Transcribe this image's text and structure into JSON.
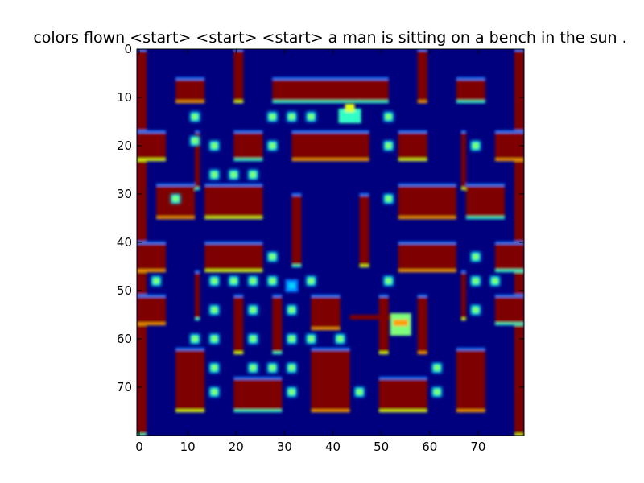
{
  "title": "colors flown <start> <start> <start> a man is sitting on a bench in the sun .",
  "chart_data": {
    "type": "heatmap",
    "title": "colors flown <start> <start> <start> a man is sitting on a bench in the sun .",
    "colormap": "jet",
    "xlim": [
      0,
      80
    ],
    "ylim": [
      80,
      0
    ],
    "x_ticks": [
      0,
      10,
      20,
      30,
      40,
      50,
      60,
      70
    ],
    "y_ticks": [
      0,
      10,
      20,
      30,
      40,
      50,
      60,
      70
    ],
    "colors": {
      "background": "#00007f",
      "wall": "#7f0000",
      "wall_edge_red": "#ff1a00",
      "edge_orange": "#ff9e00",
      "edge_yellow": "#e0ff18",
      "edge_cyan": "#30ffc6",
      "edge_blue": "#007cff",
      "pellet": "#7fff7a",
      "pellet_halo": "#00d4ff"
    },
    "walls": [
      [
        0,
        0,
        2,
        80
      ],
      [
        78,
        0,
        2,
        80
      ],
      [
        8,
        6,
        6,
        5
      ],
      [
        66,
        6,
        6,
        5
      ],
      [
        20,
        0,
        2,
        11
      ],
      [
        58,
        0,
        2,
        11
      ],
      [
        28,
        6,
        24,
        5
      ],
      [
        0,
        17,
        6,
        6
      ],
      [
        74,
        17,
        6,
        6
      ],
      [
        20,
        17,
        6,
        6
      ],
      [
        54,
        17,
        6,
        6
      ],
      [
        32,
        17,
        16,
        6
      ],
      [
        12,
        17,
        1,
        12
      ],
      [
        67,
        17,
        1,
        12
      ],
      [
        4,
        28,
        8,
        7
      ],
      [
        68,
        28,
        8,
        7
      ],
      [
        14,
        28,
        12,
        7
      ],
      [
        54,
        28,
        12,
        7
      ],
      [
        32,
        30,
        2,
        15
      ],
      [
        46,
        30,
        2,
        15
      ],
      [
        0,
        40,
        6,
        6
      ],
      [
        74,
        40,
        6,
        6
      ],
      [
        14,
        40,
        12,
        6
      ],
      [
        54,
        40,
        12,
        6
      ],
      [
        12,
        46,
        1,
        10
      ],
      [
        67,
        46,
        1,
        10
      ],
      [
        0,
        51,
        6,
        6
      ],
      [
        74,
        51,
        6,
        6
      ],
      [
        20,
        51,
        2,
        12
      ],
      [
        58,
        51,
        2,
        12
      ],
      [
        28,
        51,
        2,
        12
      ],
      [
        50,
        51,
        2,
        12
      ],
      [
        36,
        51,
        6,
        7
      ],
      [
        44,
        55,
        10,
        1
      ],
      [
        8,
        62,
        6,
        13
      ],
      [
        66,
        62,
        6,
        13
      ],
      [
        20,
        68,
        10,
        7
      ],
      [
        50,
        68,
        10,
        7
      ],
      [
        36,
        62,
        8,
        13
      ]
    ],
    "pellets": [
      [
        12,
        14
      ],
      [
        28,
        14
      ],
      [
        32,
        14
      ],
      [
        36,
        14
      ],
      [
        52,
        14
      ],
      [
        12,
        19
      ],
      [
        16,
        20
      ],
      [
        28,
        20
      ],
      [
        52,
        20
      ],
      [
        70,
        20
      ],
      [
        16,
        26
      ],
      [
        20,
        26
      ],
      [
        24,
        26
      ],
      [
        8,
        31
      ],
      [
        52,
        31
      ],
      [
        28,
        43
      ],
      [
        70,
        43
      ],
      [
        4,
        48
      ],
      [
        16,
        48
      ],
      [
        20,
        48
      ],
      [
        24,
        48
      ],
      [
        28,
        48
      ],
      [
        36,
        48
      ],
      [
        52,
        48
      ],
      [
        70,
        48
      ],
      [
        74,
        48
      ],
      [
        16,
        54
      ],
      [
        24,
        54
      ],
      [
        32,
        54
      ],
      [
        70,
        54
      ],
      [
        12,
        60
      ],
      [
        16,
        60
      ],
      [
        24,
        60
      ],
      [
        32,
        60
      ],
      [
        36,
        60
      ],
      [
        42,
        60
      ],
      [
        16,
        66
      ],
      [
        24,
        66
      ],
      [
        28,
        66
      ],
      [
        32,
        66
      ],
      [
        62,
        66
      ],
      [
        16,
        71
      ],
      [
        32,
        71
      ],
      [
        46,
        71
      ],
      [
        62,
        71
      ]
    ],
    "sprites": [
      {
        "name": "player",
        "x": 44,
        "y": 14
      },
      {
        "name": "ghost",
        "x": 54.5,
        "y": 57
      },
      {
        "name": "small-ghost",
        "x": 32,
        "y": 49
      }
    ]
  }
}
